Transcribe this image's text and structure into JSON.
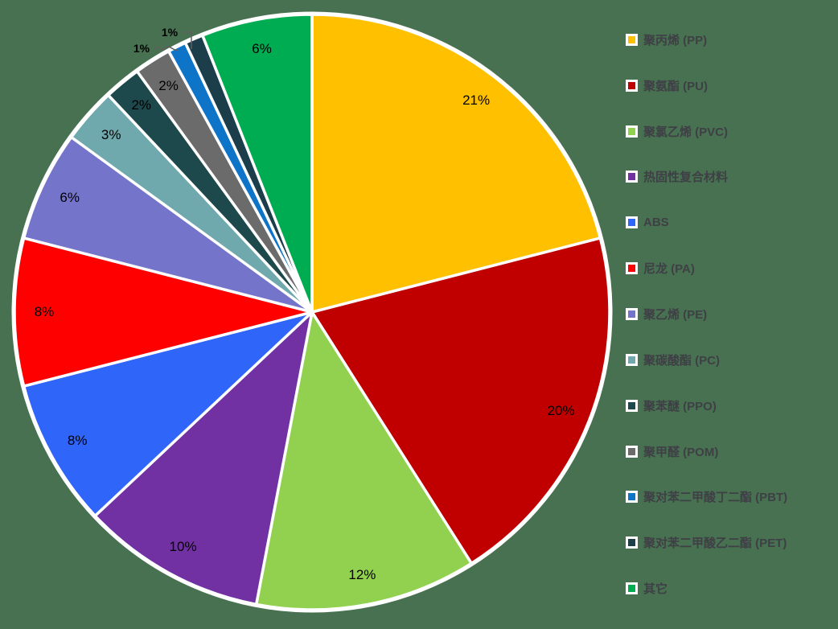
{
  "figure": {
    "background_color": "#477150",
    "leader_line_color": "#5f5f5f"
  },
  "chart_data": {
    "type": "pie",
    "title": "",
    "direction": "clockwise",
    "start_angle_deg": 0,
    "legend_position": "right",
    "categories": [
      "聚丙烯 (PP)",
      "聚氨酯 (PU)",
      "聚氯乙烯 (PVC)",
      "热固性复合材料",
      "ABS",
      "尼龙 (PA)",
      "聚乙烯 (PE)",
      "聚碳酸酯 (PC)",
      "聚苯醚 (PPO)",
      "聚甲醛 (POM)",
      "聚对苯二甲酸丁二酯 (PBT)",
      "聚对苯二甲酸乙二酯 (PET)",
      "其它"
    ],
    "values": [
      21,
      20,
      12,
      10,
      8,
      8,
      6,
      3,
      2,
      2,
      1,
      1,
      6
    ],
    "slices": [
      {
        "label": "聚丙烯 (PP)",
        "value_pct": 21,
        "data_label": "21%",
        "color": "#FFC000"
      },
      {
        "label": "聚氨酯 (PU)",
        "value_pct": 20,
        "data_label": "20%",
        "color": "#C00000"
      },
      {
        "label": "聚氯乙烯 (PVC)",
        "value_pct": 12,
        "data_label": "12%",
        "color": "#92D050"
      },
      {
        "label": "热固性复合材料",
        "value_pct": 10,
        "data_label": "10%",
        "color": "#7131A3"
      },
      {
        "label": "ABS",
        "value_pct": 8,
        "data_label": "8%",
        "color": "#3065FA"
      },
      {
        "label": "尼龙 (PA)",
        "value_pct": 8,
        "data_label": "8%",
        "color": "#FF0000"
      },
      {
        "label": "聚乙烯 (PE)",
        "value_pct": 6,
        "data_label": "6%",
        "color": "#7574CB"
      },
      {
        "label": "聚碳酸酯 (PC)",
        "value_pct": 3,
        "data_label": "3%",
        "color": "#6FA9AD"
      },
      {
        "label": "聚苯醚 (PPO)",
        "value_pct": 2,
        "data_label": "2%",
        "color": "#1D484C"
      },
      {
        "label": "聚甲醛 (POM)",
        "value_pct": 2,
        "data_label": "2%",
        "color": "#6B6B6B"
      },
      {
        "label": "聚对苯二甲酸丁二酯 (PBT)",
        "value_pct": 1,
        "data_label": "1%",
        "color": "#0E74C8"
      },
      {
        "label": "聚对苯二甲酸乙二酯 (PET)",
        "value_pct": 1,
        "data_label": "1%",
        "color": "#1C3E4A"
      },
      {
        "label": "其它",
        "value_pct": 6,
        "data_label": "6%",
        "color": "#00AC51"
      }
    ],
    "outside_label_indices": [
      10,
      11
    ]
  }
}
